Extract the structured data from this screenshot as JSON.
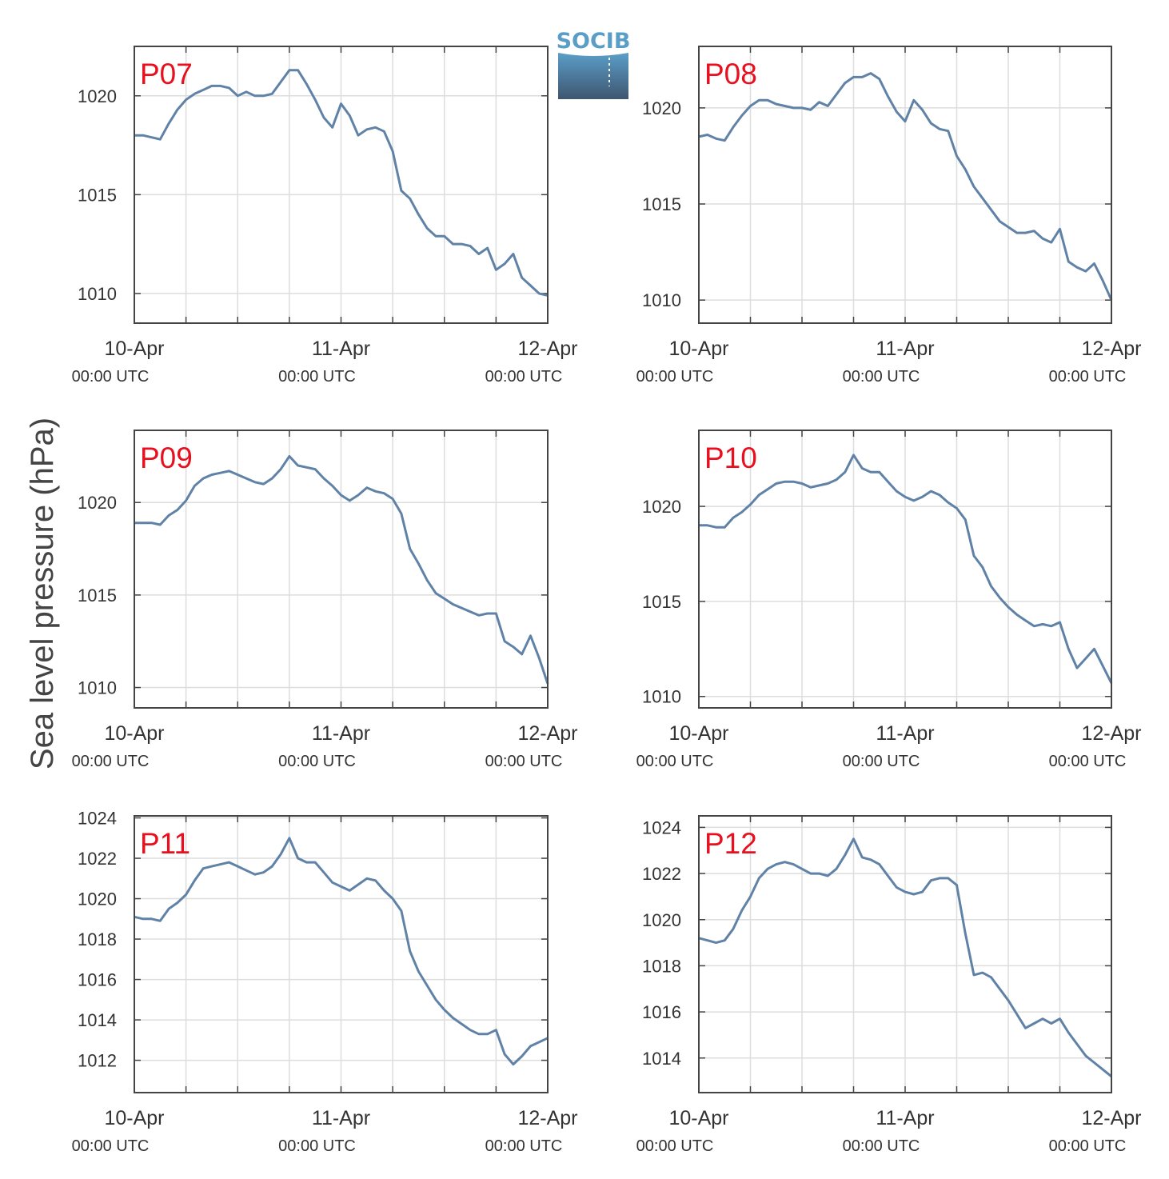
{
  "figure": {
    "ylabel": "Sea level pressure (hPa)",
    "logo_text": "SOCIB",
    "xtick_dates": [
      "10-Apr",
      "11-Apr",
      "12-Apr"
    ],
    "xtick_times": [
      "00:00 UTC",
      "00:00 UTC",
      "00:00 UTC"
    ]
  },
  "colors": {
    "line": "#5f82a6",
    "station_label": "#e8101e",
    "grid": "#dddddd",
    "axes": "#444444",
    "logo_top": "#5a9ec8",
    "logo_bottom": "#3f5570"
  },
  "chart_data": [
    {
      "type": "line",
      "title": "P07",
      "xlabel": "",
      "ylabel": "Sea level pressure (hPa)",
      "xlim": [
        0,
        48
      ],
      "ylim": [
        1008.5,
        1022.5
      ],
      "yticks": [
        1010,
        1015,
        1020
      ],
      "grid": true,
      "series": [
        {
          "x": [
            0,
            1,
            2,
            3,
            4,
            5,
            6,
            7,
            8,
            9,
            10,
            11,
            12,
            13,
            14,
            15,
            16,
            17,
            18,
            19,
            20,
            21,
            22,
            23,
            24,
            25,
            26,
            27,
            28,
            29,
            30,
            31,
            32,
            33,
            34,
            35,
            36,
            37,
            38,
            39,
            40,
            41,
            42,
            43,
            44,
            45,
            46,
            47,
            48
          ],
          "y": [
            1018.0,
            1018.0,
            1017.9,
            1017.8,
            1018.6,
            1019.3,
            1019.8,
            1020.1,
            1020.3,
            1020.5,
            1020.5,
            1020.4,
            1020.0,
            1020.2,
            1020.0,
            1020.0,
            1020.1,
            1020.7,
            1021.3,
            1021.3,
            1020.6,
            1019.8,
            1018.9,
            1018.4,
            1019.6,
            1019.0,
            1018.0,
            1018.3,
            1018.4,
            1018.2,
            1017.2,
            1015.2,
            1014.8,
            1014.0,
            1013.3,
            1012.9,
            1012.9,
            1012.5,
            1012.5,
            1012.4,
            1012.0,
            1012.3,
            1011.2,
            1011.5,
            1012.0,
            1010.8,
            1010.4,
            1010.0,
            1009.9
          ]
        }
      ]
    },
    {
      "type": "line",
      "title": "P08",
      "xlabel": "",
      "ylabel": "Sea level pressure (hPa)",
      "xlim": [
        0,
        48
      ],
      "ylim": [
        1008.8,
        1023.2
      ],
      "yticks": [
        1010,
        1015,
        1020
      ],
      "grid": true,
      "series": [
        {
          "x": [
            0,
            1,
            2,
            3,
            4,
            5,
            6,
            7,
            8,
            9,
            10,
            11,
            12,
            13,
            14,
            15,
            16,
            17,
            18,
            19,
            20,
            21,
            22,
            23,
            24,
            25,
            26,
            27,
            28,
            29,
            30,
            31,
            32,
            33,
            34,
            35,
            36,
            37,
            38,
            39,
            40,
            41,
            42,
            43,
            44,
            45,
            46,
            47,
            48
          ],
          "y": [
            1018.5,
            1018.6,
            1018.4,
            1018.3,
            1019.0,
            1019.6,
            1020.1,
            1020.4,
            1020.4,
            1020.2,
            1020.1,
            1020.0,
            1020.0,
            1019.9,
            1020.3,
            1020.1,
            1020.7,
            1021.3,
            1021.6,
            1021.6,
            1021.8,
            1021.5,
            1020.6,
            1019.8,
            1019.3,
            1020.4,
            1019.9,
            1019.2,
            1018.9,
            1018.8,
            1017.5,
            1016.8,
            1015.9,
            1015.3,
            1014.7,
            1014.1,
            1013.8,
            1013.5,
            1013.5,
            1013.6,
            1013.2,
            1013.0,
            1013.7,
            1012.0,
            1011.7,
            1011.5,
            1011.9,
            1011.0,
            1010.0
          ]
        }
      ]
    },
    {
      "type": "line",
      "title": "P09",
      "xlabel": "",
      "ylabel": "Sea level pressure (hPa)",
      "xlim": [
        0,
        48
      ],
      "ylim": [
        1008.9,
        1023.9
      ],
      "yticks": [
        1010,
        1015,
        1020
      ],
      "grid": true,
      "series": [
        {
          "x": [
            0,
            1,
            2,
            3,
            4,
            5,
            6,
            7,
            8,
            9,
            10,
            11,
            12,
            13,
            14,
            15,
            16,
            17,
            18,
            19,
            20,
            21,
            22,
            23,
            24,
            25,
            26,
            27,
            28,
            29,
            30,
            31,
            32,
            33,
            34,
            35,
            36,
            37,
            38,
            39,
            40,
            41,
            42,
            43,
            44,
            45,
            46,
            47,
            48
          ],
          "y": [
            1018.9,
            1018.9,
            1018.9,
            1018.8,
            1019.3,
            1019.6,
            1020.1,
            1020.9,
            1021.3,
            1021.5,
            1021.6,
            1021.7,
            1021.5,
            1021.3,
            1021.1,
            1021.0,
            1021.3,
            1021.8,
            1022.5,
            1022.0,
            1021.9,
            1021.8,
            1021.3,
            1020.9,
            1020.4,
            1020.1,
            1020.4,
            1020.8,
            1020.6,
            1020.5,
            1020.2,
            1019.4,
            1017.5,
            1016.7,
            1015.8,
            1015.1,
            1014.8,
            1014.5,
            1014.3,
            1014.1,
            1013.9,
            1014.0,
            1014.0,
            1012.5,
            1012.2,
            1011.8,
            1012.8,
            1011.6,
            1010.2
          ]
        }
      ]
    },
    {
      "type": "line",
      "title": "P10",
      "xlabel": "",
      "ylabel": "Sea level pressure (hPa)",
      "xlim": [
        0,
        48
      ],
      "ylim": [
        1009.4,
        1024.0
      ],
      "yticks": [
        1010,
        1015,
        1020
      ],
      "grid": true,
      "series": [
        {
          "x": [
            0,
            1,
            2,
            3,
            4,
            5,
            6,
            7,
            8,
            9,
            10,
            11,
            12,
            13,
            14,
            15,
            16,
            17,
            18,
            19,
            20,
            21,
            22,
            23,
            24,
            25,
            26,
            27,
            28,
            29,
            30,
            31,
            32,
            33,
            34,
            35,
            36,
            37,
            38,
            39,
            40,
            41,
            42,
            43,
            44,
            45,
            46,
            47,
            48
          ],
          "y": [
            1019.0,
            1019.0,
            1018.9,
            1018.9,
            1019.4,
            1019.7,
            1020.1,
            1020.6,
            1020.9,
            1021.2,
            1021.3,
            1021.3,
            1021.2,
            1021.0,
            1021.1,
            1021.2,
            1021.4,
            1021.8,
            1022.7,
            1022.0,
            1021.8,
            1021.8,
            1021.3,
            1020.8,
            1020.5,
            1020.3,
            1020.5,
            1020.8,
            1020.6,
            1020.2,
            1019.9,
            1019.3,
            1017.4,
            1016.8,
            1015.8,
            1015.2,
            1014.7,
            1014.3,
            1014.0,
            1013.7,
            1013.8,
            1013.7,
            1013.9,
            1012.5,
            1011.5,
            1012.0,
            1012.5,
            1011.6,
            1010.7
          ]
        }
      ]
    },
    {
      "type": "line",
      "title": "P11",
      "xlabel": "",
      "ylabel": "Sea level pressure (hPa)",
      "xlim": [
        0,
        48
      ],
      "ylim": [
        1010.4,
        1024.1
      ],
      "yticks": [
        1012,
        1014,
        1016,
        1018,
        1020,
        1022,
        1024
      ],
      "grid": true,
      "series": [
        {
          "x": [
            0,
            1,
            2,
            3,
            4,
            5,
            6,
            7,
            8,
            9,
            10,
            11,
            12,
            13,
            14,
            15,
            16,
            17,
            18,
            19,
            20,
            21,
            22,
            23,
            24,
            25,
            26,
            27,
            28,
            29,
            30,
            31,
            32,
            33,
            34,
            35,
            36,
            37,
            38,
            39,
            40,
            41,
            42,
            43,
            44,
            45,
            46,
            47,
            48
          ],
          "y": [
            1019.1,
            1019.0,
            1019.0,
            1018.9,
            1019.5,
            1019.8,
            1020.2,
            1020.9,
            1021.5,
            1021.6,
            1021.7,
            1021.8,
            1021.6,
            1021.4,
            1021.2,
            1021.3,
            1021.6,
            1022.2,
            1023.0,
            1022.0,
            1021.8,
            1021.8,
            1021.3,
            1020.8,
            1020.6,
            1020.4,
            1020.7,
            1021.0,
            1020.9,
            1020.4,
            1020.0,
            1019.4,
            1017.4,
            1016.4,
            1015.7,
            1015.0,
            1014.5,
            1014.1,
            1013.8,
            1013.5,
            1013.3,
            1013.3,
            1013.5,
            1012.3,
            1011.8,
            1012.2,
            1012.7,
            1012.9,
            1013.1
          ]
        }
      ]
    },
    {
      "type": "line",
      "title": "P12",
      "xlabel": "",
      "ylabel": "Sea level pressure (hPa)",
      "xlim": [
        0,
        48
      ],
      "ylim": [
        1012.5,
        1024.5
      ],
      "yticks": [
        1014,
        1016,
        1018,
        1020,
        1022,
        1024
      ],
      "grid": true,
      "series": [
        {
          "x": [
            0,
            1,
            2,
            3,
            4,
            5,
            6,
            7,
            8,
            9,
            10,
            11,
            12,
            13,
            14,
            15,
            16,
            17,
            18,
            19,
            20,
            21,
            22,
            23,
            24,
            25,
            26,
            27,
            28,
            29,
            30,
            31,
            32,
            33,
            34,
            35,
            36,
            37,
            38,
            39,
            40,
            41,
            42,
            43,
            44,
            45,
            46,
            47,
            48
          ],
          "y": [
            1019.2,
            1019.1,
            1019.0,
            1019.1,
            1019.6,
            1020.4,
            1021.0,
            1021.8,
            1022.2,
            1022.4,
            1022.5,
            1022.4,
            1022.2,
            1022.0,
            1022.0,
            1021.9,
            1022.2,
            1022.8,
            1023.5,
            1022.7,
            1022.6,
            1022.4,
            1021.9,
            1021.4,
            1021.2,
            1021.1,
            1021.2,
            1021.7,
            1021.8,
            1021.8,
            1021.5,
            1019.4,
            1017.6,
            1017.7,
            1017.5,
            1017.0,
            1016.5,
            1015.9,
            1015.3,
            1015.5,
            1015.7,
            1015.5,
            1015.7,
            1015.1,
            1014.6,
            1014.1,
            1013.8,
            1013.5,
            1013.2
          ]
        }
      ]
    }
  ]
}
